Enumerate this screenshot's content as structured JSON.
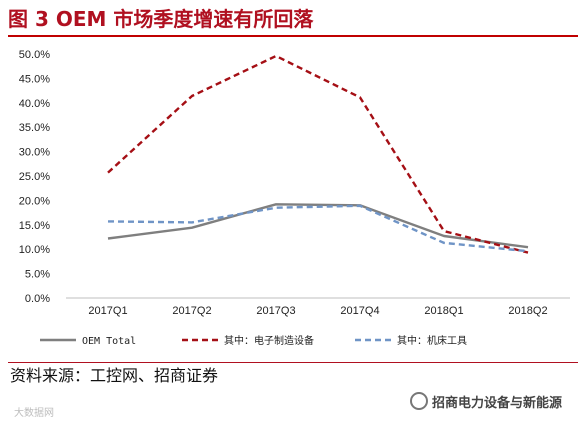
{
  "header": {
    "title": "图 3 OEM 市场季度增速有所回落"
  },
  "footer": {
    "source": "资料来源：工控网、招商证券",
    "watermark_left": "大数据网",
    "watermark_right": "招商电力设备与新能源"
  },
  "chart_data": {
    "type": "line",
    "categories": [
      "2017Q1",
      "2017Q2",
      "2017Q3",
      "2017Q4",
      "2018Q1",
      "2018Q2"
    ],
    "series": [
      {
        "name": "OEM Total",
        "values": [
          12.2,
          14.4,
          19.2,
          19.0,
          12.7,
          10.4
        ],
        "color": "#7f7f7f",
        "style": "solid"
      },
      {
        "name": "其中：电子制造设备",
        "values": [
          25.7,
          41.4,
          49.6,
          41.1,
          13.7,
          9.3
        ],
        "color": "#a50f15",
        "style": "dashed"
      },
      {
        "name": "其中：机床工具",
        "values": [
          15.7,
          15.5,
          18.5,
          18.9,
          11.3,
          9.6
        ],
        "color": "#6f94c6",
        "style": "dashed"
      }
    ],
    "ylim": [
      0,
      50
    ],
    "yticks": [
      "0.0%",
      "5.0%",
      "10.0%",
      "15.0%",
      "20.0%",
      "25.0%",
      "30.0%",
      "35.0%",
      "40.0%",
      "45.0%",
      "50.0%"
    ],
    "grid": false,
    "legend_position": "bottom"
  }
}
